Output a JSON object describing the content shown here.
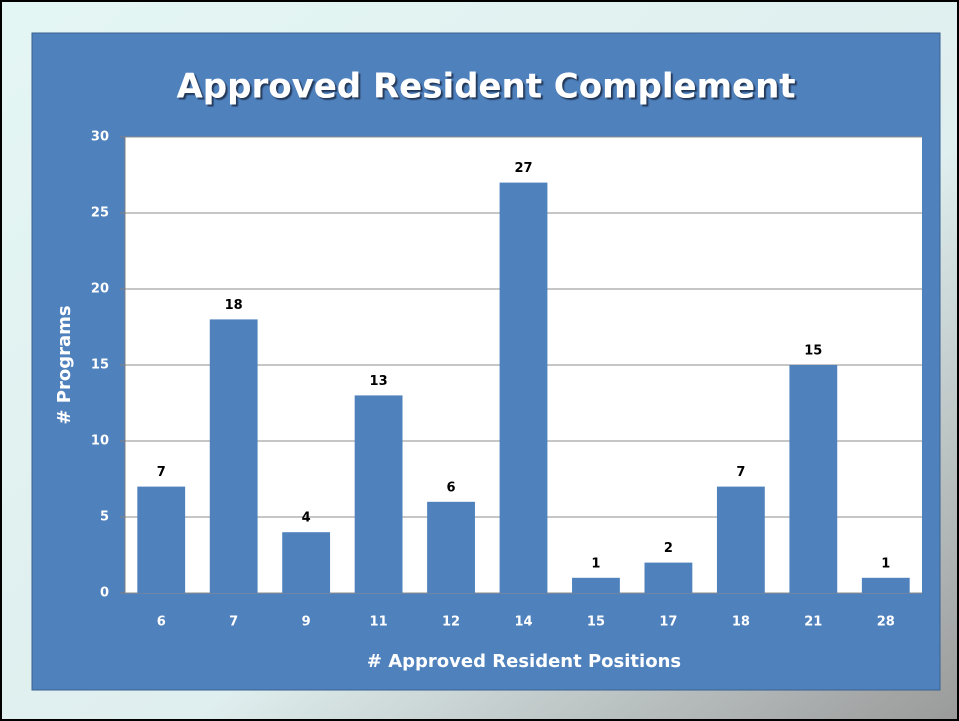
{
  "chart_data": {
    "type": "bar",
    "title": "Approved Resident Complement",
    "x_label": "# Approved Resident Positions",
    "y_label": "# Programs",
    "categories": [
      "6",
      "7",
      "9",
      "11",
      "12",
      "14",
      "15",
      "17",
      "18",
      "21",
      "28"
    ],
    "values": [
      7,
      18,
      4,
      13,
      6,
      27,
      1,
      2,
      7,
      15,
      1
    ],
    "color": "#4f81bd",
    "ylim": [
      0,
      30
    ],
    "yticks": [
      0,
      5,
      10,
      15,
      20,
      25,
      30
    ],
    "grid": true
  }
}
